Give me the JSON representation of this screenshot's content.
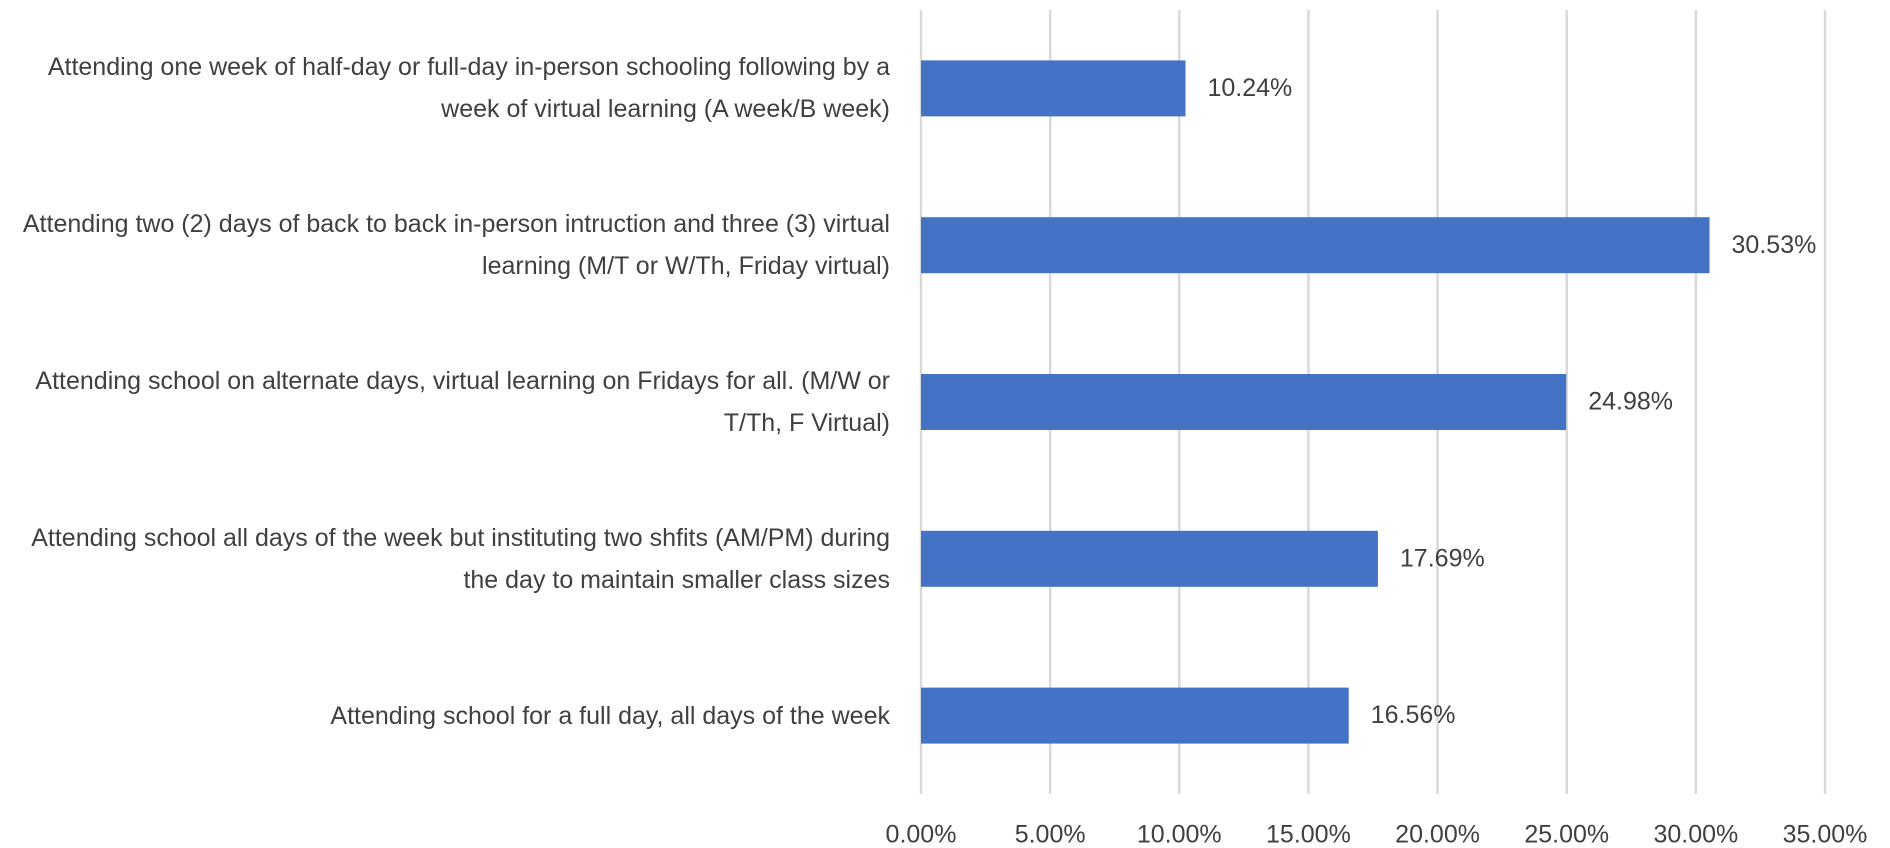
{
  "chart_data": {
    "type": "barh",
    "categories": [
      "Attending one week of half-day or full-day in-person schooling following by a week of virtual  learning (A week/B week)",
      "Attending two (2) days of back to back in-person intruction and three (3) virtual learning (M/T or W/Th, Friday virtual)",
      "Attending school on alternate days, virtual learning on Fridays for all. (M/W or T/Th, F Virtual)",
      "Attending school all days of the week but instituting two shfits (AM/PM) during the day to maintain smaller class sizes",
      "Attending school for a full day, all days of the week"
    ],
    "values": [
      10.24,
      30.53,
      24.98,
      17.69,
      16.56
    ],
    "value_labels": [
      "10.24%",
      "30.53%",
      "24.98%",
      "17.69%",
      "16.56%"
    ],
    "color": "#4472c4",
    "xlim": [
      0,
      35
    ],
    "xticks": [
      {
        "value": 0,
        "label": "0.00%"
      },
      {
        "value": 5,
        "label": "5.00%"
      },
      {
        "value": 10,
        "label": "10.00%"
      },
      {
        "value": 15,
        "label": "15.00%"
      },
      {
        "value": 20,
        "label": "20.00%"
      },
      {
        "value": 25,
        "label": "25.00%"
      },
      {
        "value": 30,
        "label": "30.00%"
      },
      {
        "value": 35,
        "label": "35.00%"
      }
    ],
    "grid": true
  }
}
